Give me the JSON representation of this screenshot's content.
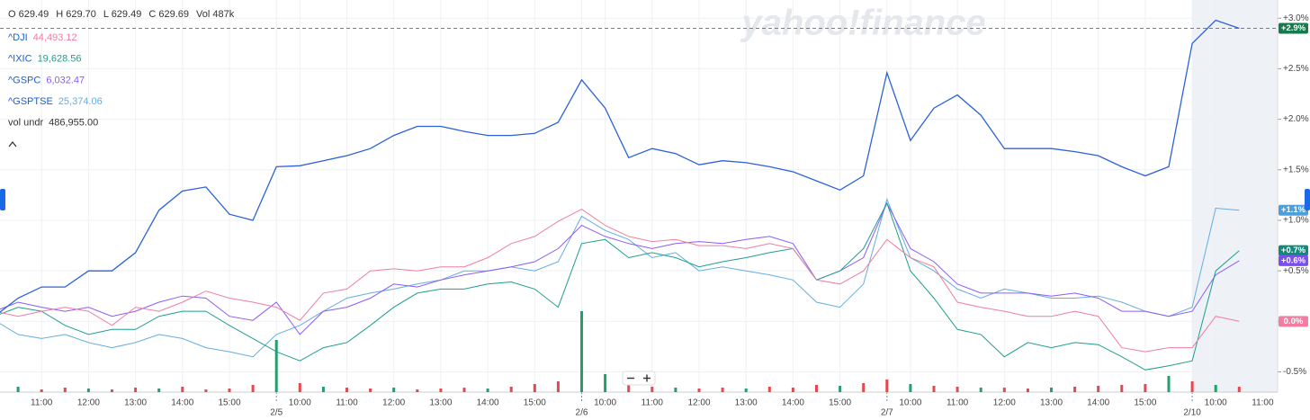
{
  "ohlc": [
    "O 629.49",
    "H 629.70",
    "L 629.49",
    "C 629.69",
    "Vol 487k"
  ],
  "watermark": "yahoo!finance",
  "chart_data": {
    "type": "line",
    "categories": [
      null,
      null,
      "11:00",
      null,
      "12:00",
      null,
      "13:00",
      null,
      "14:00",
      null,
      "15:00",
      null,
      null,
      "10:00",
      null,
      "11:00",
      null,
      "12:00",
      null,
      "13:00",
      null,
      "14:00",
      null,
      "15:00",
      null,
      null,
      "10:00",
      null,
      "11:00",
      null,
      "12:00",
      null,
      "13:00",
      null,
      "14:00",
      null,
      "15:00",
      null,
      null,
      "10:00",
      null,
      "11:00",
      null,
      "12:00",
      null,
      "13:00",
      null,
      "14:00",
      null,
      "15:00",
      null,
      null,
      "10:00",
      null,
      "11:00"
    ],
    "category_dates": [
      null,
      null,
      null,
      null,
      null,
      null,
      null,
      null,
      null,
      null,
      null,
      null,
      "2/5",
      null,
      null,
      null,
      null,
      null,
      null,
      null,
      null,
      null,
      null,
      null,
      null,
      "2/6",
      null,
      null,
      null,
      null,
      null,
      null,
      null,
      null,
      null,
      null,
      null,
      null,
      "2/7",
      null,
      null,
      null,
      null,
      null,
      null,
      null,
      null,
      null,
      null,
      null,
      null,
      "2/10",
      null,
      null,
      null
    ],
    "ylim": [
      -0.7,
      3.18
    ],
    "yticks": [
      {
        "value": -0.5,
        "label": "-0.5%"
      },
      {
        "value": 0,
        "label": "0.0%"
      },
      {
        "value": 0.5,
        "label": "+0.5%"
      },
      {
        "value": 1,
        "label": "+1.0%"
      },
      {
        "value": 1.5,
        "label": "+1.5%"
      },
      {
        "value": 2,
        "label": "+2.0%"
      },
      {
        "value": 2.5,
        "label": "+2.5%"
      },
      {
        "value": 3,
        "label": "+3.0%"
      }
    ],
    "grid": true,
    "series": [
      {
        "color": "#2b62d9",
        "end_label": "+2.9%",
        "end_label_color": "#157a4c",
        "last_value_line": true,
        "values": [
          0.05,
          0.23,
          0.34,
          0.34,
          0.5,
          0.5,
          0.68,
          1.1,
          1.29,
          1.33,
          1.06,
          1.0,
          1.53,
          1.54,
          1.59,
          1.64,
          1.71,
          1.84,
          1.93,
          1.93,
          1.88,
          1.84,
          1.84,
          1.86,
          1.97,
          2.39,
          2.11,
          1.62,
          1.71,
          1.66,
          1.55,
          1.59,
          1.57,
          1.53,
          1.48,
          1.39,
          1.3,
          1.44,
          2.46,
          1.79,
          2.11,
          2.24,
          2.04,
          1.71,
          1.71,
          1.71,
          1.68,
          1.64,
          1.53,
          1.44,
          1.53,
          2.75,
          2.98,
          2.9,
          null
        ]
      },
      {
        "name": "^DJI",
        "quote": "44,493.12",
        "color": "#f07ea0",
        "end_label": "0.0%",
        "end_label_color": "#f07ea0",
        "values": [
          0.1,
          0.05,
          0.1,
          0.14,
          0.1,
          -0.04,
          0.14,
          0.1,
          0.19,
          0.3,
          0.23,
          0.19,
          0.14,
          0.01,
          0.28,
          0.32,
          0.5,
          0.52,
          0.5,
          0.54,
          0.54,
          0.63,
          0.77,
          0.84,
          0.99,
          1.11,
          0.95,
          0.84,
          0.79,
          0.81,
          0.75,
          0.75,
          0.72,
          0.77,
          0.72,
          0.41,
          0.37,
          0.5,
          0.81,
          0.63,
          0.54,
          0.19,
          0.14,
          0.1,
          0.05,
          0.05,
          0.1,
          0.05,
          -0.26,
          -0.3,
          -0.26,
          -0.26,
          0.05,
          0,
          null
        ]
      },
      {
        "name": "^IXIC",
        "quote": "19,628.56",
        "color": "#1f9e8f",
        "end_label": "+0.7%",
        "end_label_color": "#13897e",
        "values": [
          0.05,
          0.14,
          0.1,
          -0.04,
          -0.13,
          -0.08,
          -0.08,
          0.05,
          0.1,
          0.1,
          -0.04,
          -0.17,
          -0.3,
          -0.39,
          -0.26,
          -0.21,
          -0.04,
          0.14,
          0.28,
          0.32,
          0.32,
          0.37,
          0.39,
          0.32,
          0.14,
          0.77,
          0.81,
          0.63,
          0.68,
          0.63,
          0.54,
          0.59,
          0.63,
          0.68,
          0.72,
          0.41,
          0.5,
          0.72,
          1.17,
          0.5,
          0.23,
          -0.08,
          -0.13,
          -0.35,
          -0.21,
          -0.26,
          -0.21,
          -0.23,
          -0.35,
          -0.48,
          -0.44,
          -0.39,
          0.5,
          0.7,
          null
        ]
      },
      {
        "name": "^GSPC",
        "quote": "6,032.47",
        "color": "#8b5cf6",
        "end_label": "+0.6%",
        "end_label_color": "#7c4ff0",
        "values": [
          0.1,
          0.19,
          0.14,
          0.1,
          0.14,
          0.05,
          0.1,
          0.19,
          0.25,
          0.23,
          0.05,
          0.01,
          0.19,
          -0.13,
          0.1,
          0.14,
          0.23,
          0.37,
          0.34,
          0.41,
          0.46,
          0.5,
          0.54,
          0.59,
          0.72,
          0.95,
          0.84,
          0.77,
          0.72,
          0.77,
          0.79,
          0.77,
          0.81,
          0.84,
          0.77,
          0.41,
          0.5,
          0.63,
          1.17,
          0.72,
          0.59,
          0.37,
          0.28,
          0.28,
          0.28,
          0.25,
          0.28,
          0.23,
          0.1,
          0.1,
          0.05,
          0.1,
          0.46,
          0.6,
          null
        ]
      },
      {
        "name": "^GSPTSE",
        "quote": "25,374.06",
        "color": "#63ade0",
        "end_label": "+1.1%",
        "end_label_color": "#4d9fdc",
        "values": [
          0.01,
          -0.13,
          -0.17,
          -0.13,
          -0.21,
          -0.26,
          -0.21,
          -0.13,
          -0.17,
          -0.26,
          -0.3,
          -0.35,
          -0.13,
          -0.04,
          0.1,
          0.23,
          0.28,
          0.32,
          0.37,
          0.41,
          0.5,
          0.5,
          0.54,
          0.5,
          0.59,
          1.04,
          0.9,
          0.81,
          0.63,
          0.68,
          0.5,
          0.54,
          0.5,
          0.46,
          0.41,
          0.19,
          0.14,
          0.37,
          1.21,
          0.63,
          0.5,
          0.32,
          0.23,
          0.32,
          0.28,
          0.23,
          0.23,
          0.25,
          0.19,
          0.1,
          0.05,
          0.14,
          1.12,
          1.1,
          null
        ]
      }
    ],
    "volume": {
      "name": "vol undr",
      "quote": "486,955.00",
      "ylim": [
        0,
        100
      ],
      "values": [
        4,
        6,
        3,
        5,
        4,
        3,
        5,
        4,
        6,
        3,
        4,
        8,
        58,
        10,
        6,
        5,
        4,
        5,
        3,
        4,
        5,
        4,
        6,
        9,
        12,
        90,
        20,
        8,
        6,
        5,
        4,
        5,
        4,
        6,
        5,
        8,
        7,
        10,
        14,
        9,
        7,
        6,
        5,
        5,
        4,
        5,
        6,
        7,
        8,
        9,
        18,
        12,
        8,
        6,
        null
      ],
      "colors": [
        "#e5484d",
        "#22a06b",
        "#e5484d",
        "#e5484d",
        "#22a06b",
        "#e5484d",
        "#e5484d",
        "#22a06b",
        "#e5484d",
        "#e5484d",
        "#e5484d",
        "#e5484d",
        "#22a06b",
        "#e5484d",
        "#22a06b",
        "#e5484d",
        "#e5484d",
        "#22a06b",
        "#e5484d",
        "#e5484d",
        "#e5484d",
        "#22a06b",
        "#e5484d",
        "#e5484d",
        "#e5484d",
        "#22a06b",
        "#22a06b",
        "#e5484d",
        "#e5484d",
        "#22a06b",
        "#e5484d",
        "#e5484d",
        "#22a06b",
        "#e5484d",
        "#e5484d",
        "#e5484d",
        "#22a06b",
        "#e5484d",
        "#e5484d",
        "#22a06b",
        "#e5484d",
        "#e5484d",
        "#22a06b",
        "#e5484d",
        "#e5484d",
        "#22a06b",
        "#e5484d",
        "#e5484d",
        "#e5484d",
        "#e5484d",
        "#22a06b",
        "#e5484d",
        "#22a06b",
        "#e5484d",
        null
      ]
    }
  }
}
